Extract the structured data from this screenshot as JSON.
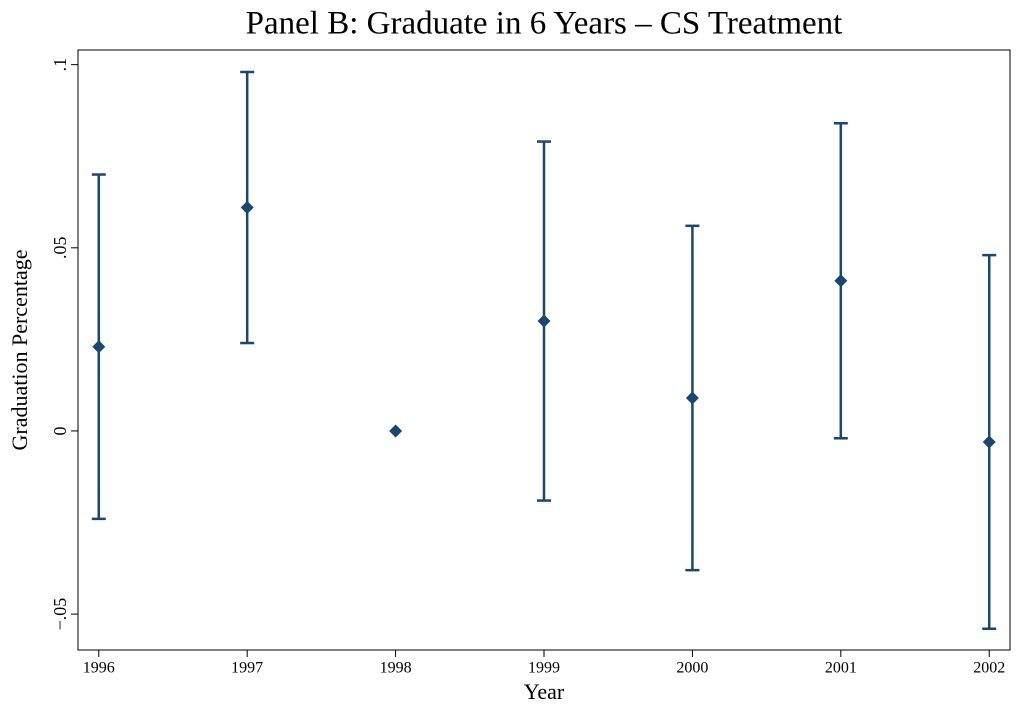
{
  "chart_data": {
    "type": "errorbar",
    "title": "Panel B: Graduate in 6 Years – CS Treatment",
    "xlabel": "Year",
    "ylabel": "Graduation Percentage",
    "x": [
      1996,
      1997,
      1998,
      1999,
      2000,
      2001,
      2002
    ],
    "values": [
      0.023,
      0.061,
      0,
      0.03,
      0.009,
      0.041,
      -0.003
    ],
    "lower": [
      -0.024,
      0.024,
      null,
      -0.019,
      -0.038,
      -0.002,
      -0.054
    ],
    "upper": [
      0.07,
      0.098,
      null,
      0.079,
      0.056,
      0.084,
      0.048
    ],
    "color": "#1a476f",
    "xlim": [
      1995.86,
      2002.14
    ],
    "xticks": [
      1996,
      1997,
      1998,
      1999,
      2000,
      2001,
      2002
    ],
    "ylim": [
      -0.0598,
      0.104
    ],
    "yticks": [
      {
        "value": -0.05,
        "label": "−.05"
      },
      0,
      {
        "value": 0.05,
        "label": ".05"
      },
      {
        "value": 0.1,
        "label": ".1"
      }
    ],
    "grid": false
  }
}
